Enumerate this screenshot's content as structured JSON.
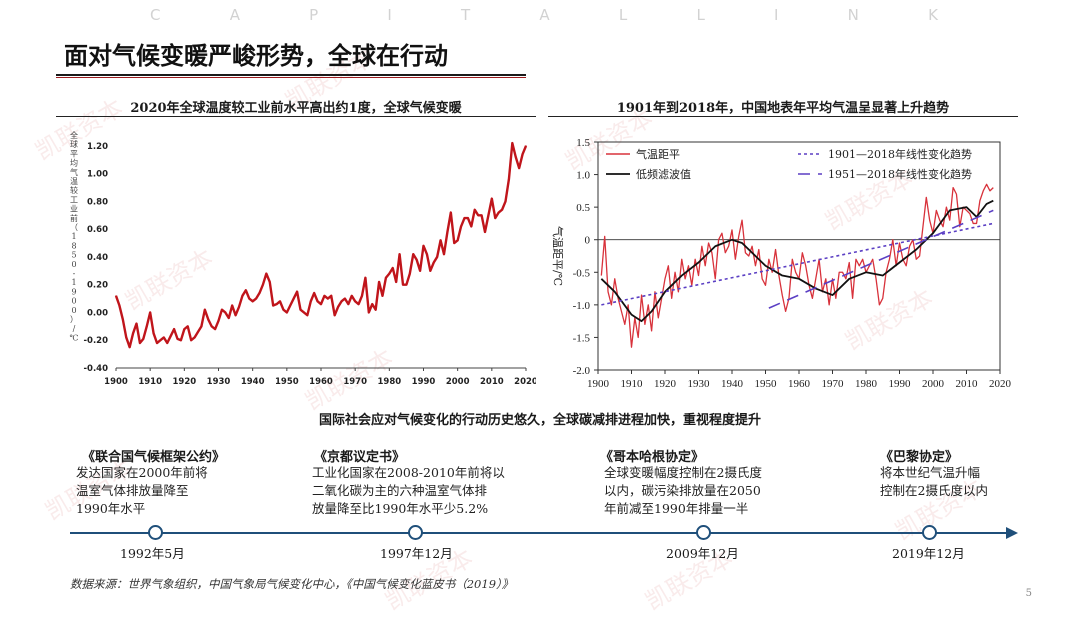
{
  "brand_letters": [
    "C",
    "A",
    "P",
    "I",
    "T",
    "A",
    "L",
    "L",
    "I",
    "N",
    "K"
  ],
  "page_title": "面对气候变暖严峻形势，全球在行动",
  "watermark_text": "凯联资本",
  "left_panel": {
    "title": "2020年全球温度较工业前水平高出约1度，全球气候变暖"
  },
  "right_panel": {
    "title": "1901年到2018年，中国地表年平均气温呈显著上升趋势"
  },
  "chart_data": [
    {
      "type": "line",
      "title": "2020年全球温度较工业前水平高出约1度，全球气候变暖",
      "ylabel": "全球平均气温较工业前（1850-1900）/℃",
      "xlabel": "",
      "xlim": [
        1900,
        2020
      ],
      "ylim": [
        -0.4,
        1.3
      ],
      "xticks": [
        "1900",
        "1910",
        "1920",
        "1930",
        "1940",
        "1950",
        "1960",
        "1970",
        "1980",
        "1990",
        "2000",
        "2010",
        "2020"
      ],
      "yticks": [
        "-0.40",
        "-0.20",
        "0.00",
        "0.20",
        "0.40",
        "0.60",
        "0.80",
        "1.00",
        "1.20"
      ],
      "color": "#c0151b",
      "series": [
        {
          "name": "",
          "x": [
            1900,
            1901,
            1902,
            1903,
            1904,
            1905,
            1906,
            1907,
            1908,
            1909,
            1910,
            1911,
            1912,
            1913,
            1914,
            1915,
            1916,
            1917,
            1918,
            1919,
            1920,
            1921,
            1922,
            1923,
            1924,
            1925,
            1926,
            1927,
            1928,
            1929,
            1930,
            1931,
            1932,
            1933,
            1934,
            1935,
            1936,
            1937,
            1938,
            1939,
            1940,
            1941,
            1942,
            1943,
            1944,
            1945,
            1946,
            1947,
            1948,
            1949,
            1950,
            1951,
            1952,
            1953,
            1954,
            1955,
            1956,
            1957,
            1958,
            1959,
            1960,
            1961,
            1962,
            1963,
            1964,
            1965,
            1966,
            1967,
            1968,
            1969,
            1970,
            1971,
            1972,
            1973,
            1974,
            1975,
            1976,
            1977,
            1978,
            1979,
            1980,
            1981,
            1982,
            1983,
            1984,
            1985,
            1986,
            1987,
            1988,
            1989,
            1990,
            1991,
            1992,
            1993,
            1994,
            1995,
            1996,
            1997,
            1998,
            1999,
            2000,
            2001,
            2002,
            2003,
            2004,
            2005,
            2006,
            2007,
            2008,
            2009,
            2010,
            2011,
            2012,
            2013,
            2014,
            2015,
            2016,
            2017,
            2018,
            2019,
            2020
          ],
          "values": [
            0.12,
            0.05,
            -0.05,
            -0.18,
            -0.25,
            -0.15,
            -0.08,
            -0.22,
            -0.19,
            -0.1,
            0.0,
            -0.15,
            -0.22,
            -0.2,
            -0.18,
            -0.22,
            -0.17,
            -0.12,
            -0.19,
            -0.2,
            -0.12,
            -0.1,
            -0.2,
            -0.18,
            -0.14,
            -0.1,
            0.02,
            -0.05,
            -0.1,
            -0.12,
            -0.06,
            0.02,
            0.0,
            -0.04,
            0.05,
            -0.02,
            0.04,
            0.12,
            0.16,
            0.1,
            0.08,
            0.1,
            0.14,
            0.2,
            0.28,
            0.22,
            0.05,
            0.06,
            0.08,
            0.02,
            0.0,
            0.05,
            0.1,
            0.15,
            0.02,
            0.0,
            -0.02,
            0.08,
            0.14,
            0.08,
            0.06,
            0.12,
            0.1,
            0.12,
            -0.02,
            0.04,
            0.08,
            0.1,
            0.06,
            0.12,
            0.08,
            0.06,
            0.12,
            0.25,
            0.0,
            0.06,
            0.02,
            0.22,
            0.12,
            0.25,
            0.28,
            0.32,
            0.22,
            0.42,
            0.2,
            0.2,
            0.28,
            0.42,
            0.38,
            0.3,
            0.48,
            0.42,
            0.3,
            0.36,
            0.4,
            0.52,
            0.42,
            0.58,
            0.72,
            0.5,
            0.52,
            0.62,
            0.68,
            0.68,
            0.62,
            0.74,
            0.7,
            0.7,
            0.58,
            0.7,
            0.82,
            0.68,
            0.72,
            0.74,
            0.8,
            0.96,
            1.22,
            1.12,
            1.04,
            1.14,
            1.2
          ]
        }
      ]
    },
    {
      "type": "line",
      "title": "1901年到2018年，中国地表年平均气温呈显著上升趋势",
      "ylabel": "气温距平/℃",
      "xlabel": "",
      "xlim": [
        1900,
        2020
      ],
      "ylim": [
        -2.0,
        1.5
      ],
      "xticks": [
        "1900",
        "1910",
        "1920",
        "1930",
        "1940",
        "1950",
        "1960",
        "1970",
        "1980",
        "1990",
        "2000",
        "2010",
        "2020"
      ],
      "yticks": [
        "-2.0",
        "-1.5",
        "-1.0",
        "-0.5",
        "0",
        "0.5",
        "1.0",
        "1.5"
      ],
      "legend_position": "top-left",
      "series": [
        {
          "name": "气温距平",
          "color": "#d8323b",
          "x": [
            1901,
            1902,
            1903,
            1904,
            1905,
            1906,
            1907,
            1908,
            1909,
            1910,
            1911,
            1912,
            1913,
            1914,
            1915,
            1916,
            1917,
            1918,
            1919,
            1920,
            1921,
            1922,
            1923,
            1924,
            1925,
            1926,
            1927,
            1928,
            1929,
            1930,
            1931,
            1932,
            1933,
            1934,
            1935,
            1936,
            1937,
            1938,
            1939,
            1940,
            1941,
            1942,
            1943,
            1944,
            1945,
            1946,
            1947,
            1948,
            1949,
            1950,
            1951,
            1952,
            1953,
            1954,
            1955,
            1956,
            1957,
            1958,
            1959,
            1960,
            1961,
            1962,
            1963,
            1964,
            1965,
            1966,
            1967,
            1968,
            1969,
            1970,
            1971,
            1972,
            1973,
            1974,
            1975,
            1976,
            1977,
            1978,
            1979,
            1980,
            1981,
            1982,
            1983,
            1984,
            1985,
            1986,
            1987,
            1988,
            1989,
            1990,
            1991,
            1992,
            1993,
            1994,
            1995,
            1996,
            1997,
            1998,
            1999,
            2000,
            2001,
            2002,
            2003,
            2004,
            2005,
            2006,
            2007,
            2008,
            2009,
            2010,
            2011,
            2012,
            2013,
            2014,
            2015,
            2016,
            2017,
            2018
          ],
          "values": [
            -0.55,
            0.05,
            -0.8,
            -1.0,
            -0.6,
            -0.9,
            -1.1,
            -1.3,
            -1.0,
            -1.65,
            -1.2,
            -1.5,
            -0.85,
            -1.3,
            -1.0,
            -1.4,
            -0.8,
            -1.2,
            -0.9,
            -0.6,
            -0.4,
            -0.9,
            -0.5,
            -0.8,
            -0.3,
            -0.6,
            -0.4,
            -0.7,
            -0.3,
            -0.55,
            -0.1,
            -0.4,
            -0.05,
            -0.2,
            -0.6,
            0.0,
            0.1,
            -0.2,
            -0.1,
            0.15,
            -0.3,
            0.05,
            0.3,
            -0.2,
            -0.25,
            -0.1,
            -0.4,
            -0.15,
            -0.6,
            -0.7,
            -0.3,
            -0.5,
            -0.15,
            -0.55,
            -0.85,
            -1.1,
            -0.9,
            -0.3,
            -0.5,
            -0.6,
            -0.2,
            -0.4,
            -0.7,
            -0.9,
            -0.6,
            -0.3,
            -0.8,
            -0.6,
            -1.0,
            -0.6,
            -0.9,
            -0.5,
            -0.5,
            -0.6,
            -0.35,
            -0.9,
            -0.3,
            -0.4,
            -0.3,
            -0.5,
            -0.4,
            -0.3,
            -0.6,
            -1.0,
            -0.9,
            -0.5,
            -0.3,
            0.0,
            -0.4,
            -0.05,
            -0.3,
            -0.4,
            -0.1,
            0.0,
            -0.3,
            -0.25,
            0.2,
            0.65,
            0.3,
            0.1,
            0.45,
            0.3,
            0.2,
            0.5,
            0.3,
            0.8,
            0.7,
            0.2,
            0.5,
            0.45,
            0.4,
            0.25,
            0.25,
            0.6,
            0.75,
            0.85,
            0.75,
            0.8
          ]
        },
        {
          "name": "低频滤波值",
          "color": "#111111",
          "x": [
            1901,
            1905,
            1910,
            1913,
            1916,
            1920,
            1925,
            1930,
            1935,
            1940,
            1943,
            1946,
            1950,
            1955,
            1960,
            1965,
            1970,
            1975,
            1980,
            1985,
            1990,
            1995,
            2000,
            2005,
            2010,
            2013,
            2016,
            2018
          ],
          "values": [
            -0.6,
            -0.8,
            -1.15,
            -1.25,
            -1.1,
            -0.8,
            -0.55,
            -0.35,
            -0.1,
            0.0,
            -0.05,
            -0.2,
            -0.4,
            -0.55,
            -0.6,
            -0.75,
            -0.85,
            -0.6,
            -0.5,
            -0.55,
            -0.35,
            -0.15,
            0.1,
            0.45,
            0.5,
            0.35,
            0.55,
            0.6
          ]
        },
        {
          "name": "1901—2018年线性变化趋势",
          "color": "#5b3fc4",
          "style": "dotted",
          "x": [
            1901,
            2018
          ],
          "values": [
            -1.0,
            0.25
          ]
        },
        {
          "name": "1951—2018年线性变化趋势",
          "color": "#5b3fc4",
          "style": "dashed",
          "x": [
            1951,
            2018
          ],
          "values": [
            -1.05,
            0.45
          ]
        }
      ]
    }
  ],
  "timeline_heading": "国际社会应对气候变化的行动历史悠久，全球碳减排进程加快，重视程度提升",
  "timeline": [
    {
      "title": "《联合国气候框架公约》",
      "desc": [
        "发达国家在2000年前将",
        "温室气体排放量降至",
        "1990年水平"
      ],
      "date": "1992年5月"
    },
    {
      "title": "《京都议定书》",
      "desc": [
        "工业化国家在2008-2010年前将以",
        "二氧化碳为主的六种温室气体排",
        "放量降至比1990年水平少5.2%"
      ],
      "date": "1997年12月"
    },
    {
      "title": "《哥本哈根协定》",
      "desc": [
        "全球变暖幅度控制在2摄氏度",
        "以内，碳污染排放量在2050",
        "年前减至1990年排量一半"
      ],
      "date": "2009年12月"
    },
    {
      "title": "《巴黎协定》",
      "desc": [
        "将本世纪气温升幅",
        "控制在2摄氏度以内"
      ],
      "date": "2019年12月"
    }
  ],
  "source": "数据来源：世界气象组织，中国气象局气候变化中心，《中国气候变化蓝皮书（2019）》",
  "page_number": "5"
}
